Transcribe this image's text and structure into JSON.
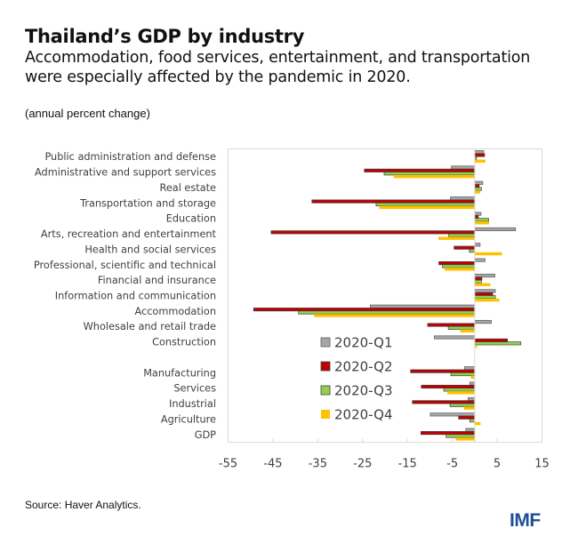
{
  "header": {
    "title": "Thailand’s GDP by industry",
    "subtitle": "Accommodation, food services, entertainment, and transportation were especially affected by the pandemic in 2020.",
    "units": "(annual percent change)"
  },
  "footer": {
    "source": "Source: Haver Analytics.",
    "logo": "IMF"
  },
  "chart_data": {
    "type": "bar",
    "orientation": "horizontal",
    "title": "Thailand’s GDP by industry",
    "xlabel": "",
    "ylabel": "",
    "xlim": [
      -55,
      15
    ],
    "xticks": [
      -55,
      -45,
      -35,
      -25,
      -15,
      -5,
      5,
      15
    ],
    "xtick_labels": [
      "-55",
      "-45",
      "-35",
      "-25",
      "-15",
      "-5",
      "5",
      "15"
    ],
    "grid": false,
    "legend_position": "center-left inside plot",
    "categories": [
      "Public administration and defense",
      "Administrative and support services",
      "Real estate",
      "Transportation and storage",
      "Education",
      "Arts, recreation and entertainment",
      "Health and social services",
      "Professional, scientific and technical",
      "Financial and insurance",
      "Information and communication",
      "Accommodation",
      "Wholesale and retail trade",
      "Construction",
      "",
      "Manufacturing",
      "Services",
      "Industrial",
      "Agriculture",
      "GDP"
    ],
    "series": [
      {
        "name": "2020-Q1",
        "color": "#a6a6a6",
        "border": "#595959",
        "values": [
          2.0,
          -5.2,
          1.8,
          -5.4,
          1.4,
          9.1,
          1.2,
          2.3,
          4.5,
          4.6,
          -23.3,
          3.7,
          -9.0,
          null,
          -2.3,
          -1.1,
          -1.5,
          -9.9,
          -2.0
        ]
      },
      {
        "name": "2020-Q2",
        "color": "#c00000",
        "border": "#404040",
        "values": [
          2.2,
          -24.6,
          1.0,
          -36.3,
          0.8,
          -45.4,
          -4.6,
          -8.0,
          1.6,
          4.0,
          -49.3,
          -10.5,
          7.3,
          null,
          -14.3,
          -11.9,
          -13.9,
          -3.6,
          -12.0
        ]
      },
      {
        "name": "2020-Q3",
        "color": "#92d050",
        "border": "#404040",
        "values": [
          0.4,
          -20.2,
          1.5,
          -22.0,
          3.1,
          -5.8,
          -1.2,
          -7.2,
          1.5,
          4.6,
          -39.3,
          -5.9,
          10.3,
          null,
          -5.3,
          -6.9,
          -5.5,
          -1.1,
          -6.4
        ]
      },
      {
        "name": "2020-Q4",
        "color": "#ffc000",
        "border": "none",
        "values": [
          2.4,
          -18.1,
          1.2,
          -21.3,
          3.2,
          -8.1,
          6.1,
          -6.7,
          3.5,
          5.5,
          -35.8,
          -3.2,
          0.5,
          null,
          -0.9,
          -6.1,
          -2.4,
          1.3,
          -4.2
        ]
      }
    ]
  }
}
